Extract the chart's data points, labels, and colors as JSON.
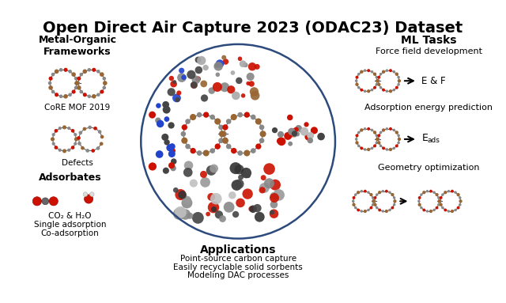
{
  "title": "Open Direct Air Capture 2023 (ODAC23) Dataset",
  "title_fontsize": 14,
  "title_fontweight": "bold",
  "background_color": "#ffffff",
  "left_panel": {
    "header": "Metal-Organic\nFrameworks",
    "label1": "CoRE MOF 2019",
    "label2": "Defects",
    "adsorbates_header": "Adsorbates",
    "adsorbates_line1": "CO₂ & H₂O",
    "adsorbates_line2": "Single adsorption",
    "adsorbates_line3": "Co-adsorption"
  },
  "center_panel": {
    "applications_header": "Applications",
    "app_line1": "Point-source carbon capture",
    "app_line2": "Easily recyclable solid sorbents",
    "app_line3": "Modeling DAC processes",
    "circle_color": "#2c4a7c",
    "circle_linewidth": 1.8
  },
  "right_panel": {
    "header": "ML Tasks",
    "task1": "Force field development",
    "task1_label": "E & F",
    "task2": "Adsorption energy prediction",
    "task3": "Geometry optimization"
  },
  "atom_colors": {
    "carbon": "#888888",
    "oxygen": "#cc1100",
    "hydrogen": "#e0e0e0",
    "metal": "#996633",
    "nitrogen": "#2244cc",
    "dark_carbon": "#444444"
  }
}
